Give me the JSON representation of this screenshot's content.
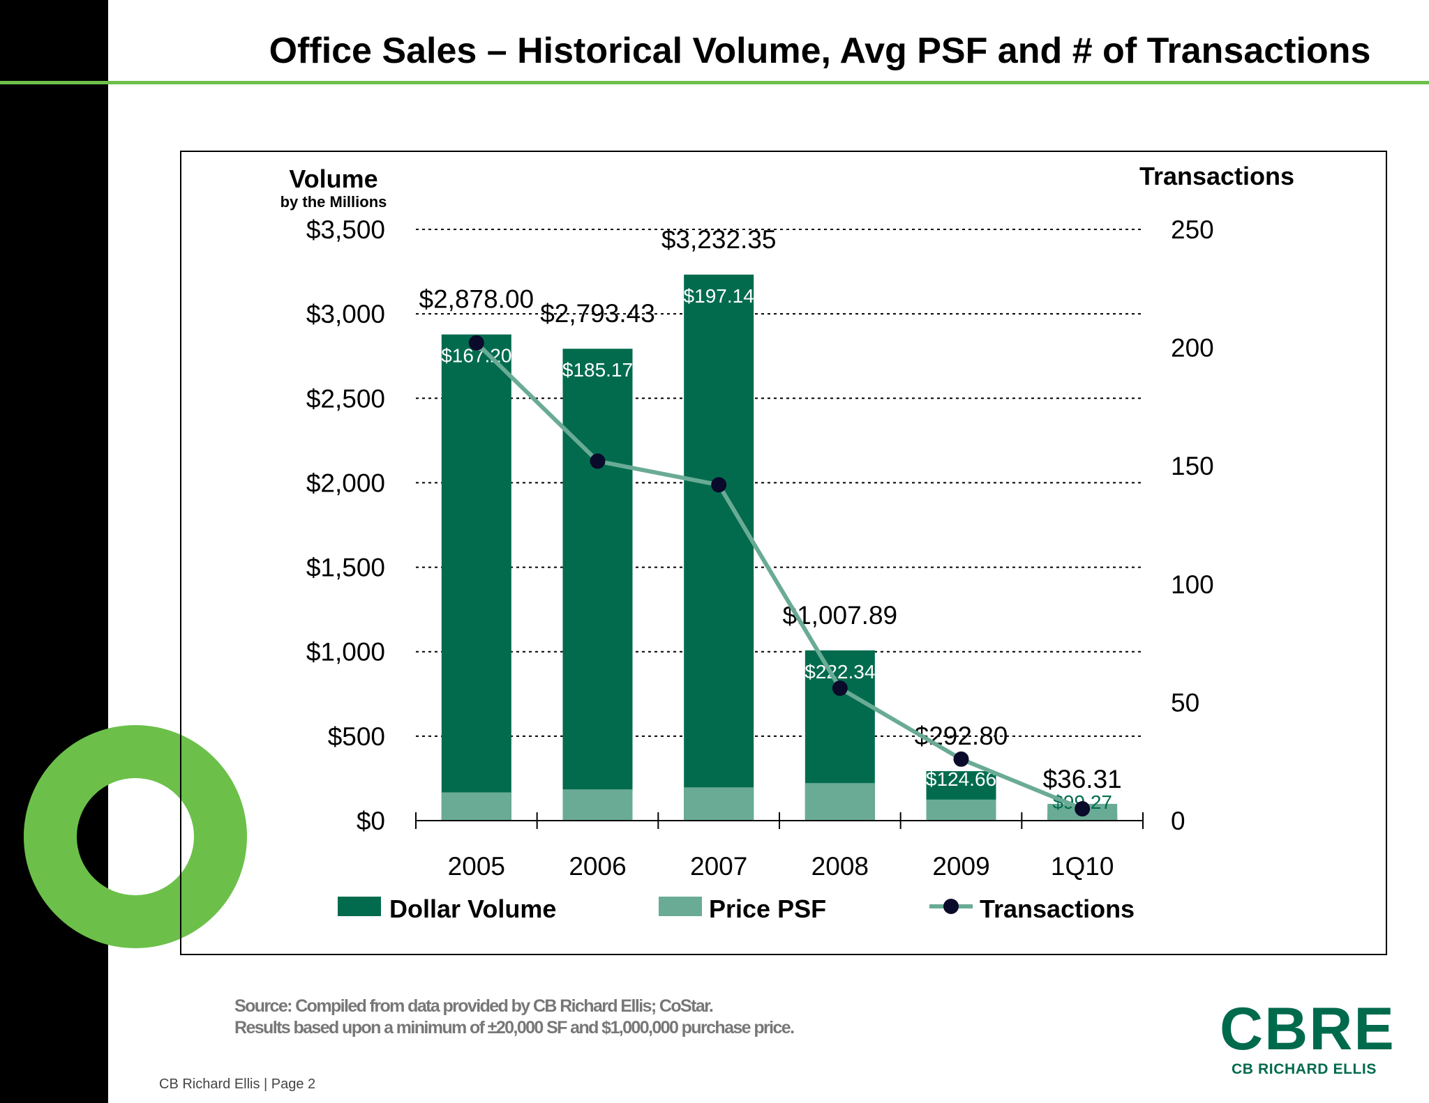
{
  "page": {
    "title": "Office Sales – Historical Volume, Avg PSF and # of Transactions",
    "source_line1": "Source: Compiled from data provided by CB Richard Ellis; CoStar.",
    "source_line2": "Results based upon a minimum of ±20,000 SF and $1,000,000 purchase price.",
    "footer": "CB Richard Ellis  |  Page 2",
    "logo_mark": "CBRE",
    "logo_sub": "CB RICHARD ELLIS"
  },
  "colors": {
    "dollar_volume": "#026b4e",
    "price_psf": "#6aab95",
    "transactions_line": "#6aab95",
    "transactions_marker": "#0a0a2a",
    "accent_green": "#6cc04a",
    "brand": "#006a4d"
  },
  "chart_data": {
    "type": "bar",
    "categories": [
      "2005",
      "2006",
      "2007",
      "2008",
      "2009",
      "1Q10"
    ],
    "series": [
      {
        "name": "Dollar Volume",
        "axis": "left",
        "values": [
          2878.0,
          2793.43,
          3232.35,
          1007.89,
          292.8,
          36.31
        ],
        "labels": [
          "$2,878.00",
          "$2,793.43",
          "$3,232.35",
          "$1,007.89",
          "$292.80",
          "$36.31"
        ]
      },
      {
        "name": "Price PSF",
        "axis": "left",
        "values": [
          167.2,
          185.17,
          197.14,
          222.34,
          124.66,
          99.27
        ],
        "labels": [
          "$167.20",
          "$185.17",
          "$197.14",
          "$222.34",
          "$124.66",
          "$99.27"
        ]
      },
      {
        "name": "Transactions",
        "axis": "right",
        "type": "line",
        "values": [
          202,
          152,
          142,
          56,
          26,
          5
        ]
      }
    ],
    "ylabel": "Volume",
    "ylabel_sub": "by the Millions",
    "ylim": [
      0,
      3500
    ],
    "yticks": [
      "$0",
      "$500",
      "$1,000",
      "$1,500",
      "$2,000",
      "$2,500",
      "$3,000",
      "$3,500"
    ],
    "y2label": "Transactions",
    "y2lim": [
      0,
      250
    ],
    "y2ticks": [
      "0",
      "50",
      "100",
      "150",
      "200",
      "250"
    ],
    "grid": "dotted horizontal",
    "legend_position": "bottom",
    "legend": [
      "Dollar Volume",
      "Price PSF",
      "Transactions"
    ]
  }
}
